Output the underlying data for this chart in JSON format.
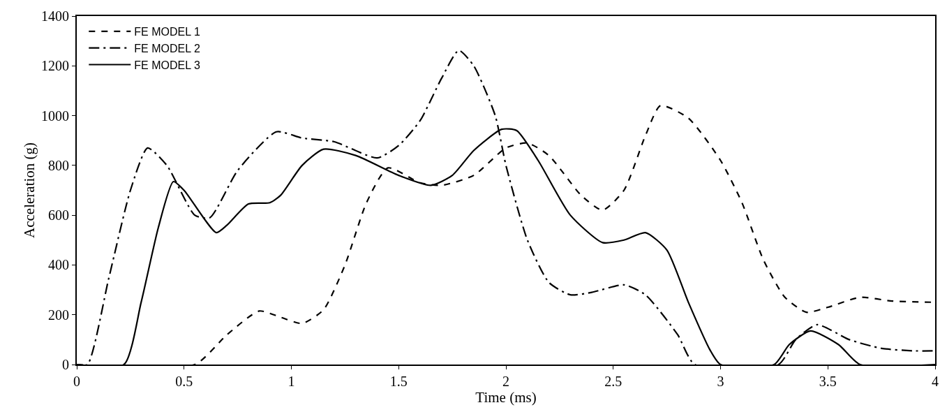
{
  "chart_data": {
    "type": "line",
    "xlabel": "Time (ms)",
    "ylabel": "Acceleration (g)",
    "xlim": [
      0,
      4
    ],
    "xticks": [
      0,
      0.5,
      1,
      1.5,
      2,
      2.5,
      3,
      3.5,
      4
    ],
    "ylim": [
      0,
      1400
    ],
    "yticks": [
      0,
      200,
      400,
      600,
      800,
      1000,
      1200,
      1400
    ],
    "grid": false,
    "legend": "top left",
    "marker": "none",
    "series": [
      {
        "name": "FE MODEL 1",
        "color": "#000000",
        "line_style": "dashed",
        "x": [
          0,
          0.55,
          0.7,
          0.85,
          0.95,
          1.05,
          1.15,
          1.25,
          1.35,
          1.45,
          1.6,
          1.7,
          1.85,
          2.0,
          2.1,
          2.2,
          2.35,
          2.45,
          2.55,
          2.65,
          2.72,
          2.85,
          3.0,
          3.1,
          3.2,
          3.3,
          3.4,
          3.5,
          3.65,
          3.8,
          4.0
        ],
        "values": [
          0,
          0,
          120,
          215,
          190,
          165,
          220,
          400,
          650,
          790,
          730,
          720,
          760,
          870,
          890,
          840,
          680,
          620,
          700,
          920,
          1040,
          990,
          820,
          650,
          420,
          270,
          210,
          230,
          270,
          255,
          250
        ]
      },
      {
        "name": "FE MODEL 2",
        "color": "#000000",
        "line_style": "dashdot",
        "x": [
          0,
          0.05,
          0.15,
          0.25,
          0.33,
          0.42,
          0.55,
          0.62,
          0.75,
          0.93,
          1.05,
          1.2,
          1.4,
          1.5,
          1.6,
          1.7,
          1.78,
          1.85,
          1.95,
          2.0,
          2.1,
          2.2,
          2.3,
          2.4,
          2.55,
          2.65,
          2.8,
          2.88,
          3.27,
          3.35,
          3.45,
          3.6,
          3.75,
          3.9,
          4.0
        ],
        "values": [
          0,
          0,
          350,
          700,
          870,
          800,
          600,
          590,
          780,
          935,
          910,
          895,
          830,
          880,
          980,
          1150,
          1262,
          1200,
          1000,
          800,
          500,
          330,
          280,
          290,
          320,
          280,
          120,
          0,
          0,
          100,
          160,
          100,
          65,
          55,
          55
        ]
      },
      {
        "name": "FE MODEL 3",
        "color": "#000000",
        "line_style": "solid",
        "x": [
          0,
          0.22,
          0.3,
          0.38,
          0.45,
          0.5,
          0.65,
          0.7,
          0.8,
          0.9,
          0.95,
          1.05,
          1.15,
          1.3,
          1.5,
          1.65,
          1.75,
          1.85,
          1.98,
          2.05,
          2.15,
          2.3,
          2.45,
          2.55,
          2.65,
          2.75,
          2.85,
          2.95,
          3.0,
          3.25,
          3.32,
          3.42,
          3.55,
          3.65,
          4.0
        ],
        "values": [
          0,
          0,
          250,
          550,
          735,
          700,
          530,
          560,
          645,
          650,
          680,
          800,
          865,
          840,
          760,
          720,
          760,
          860,
          945,
          940,
          820,
          600,
          490,
          500,
          530,
          460,
          250,
          60,
          0,
          0,
          80,
          135,
          80,
          0,
          0
        ]
      }
    ]
  }
}
